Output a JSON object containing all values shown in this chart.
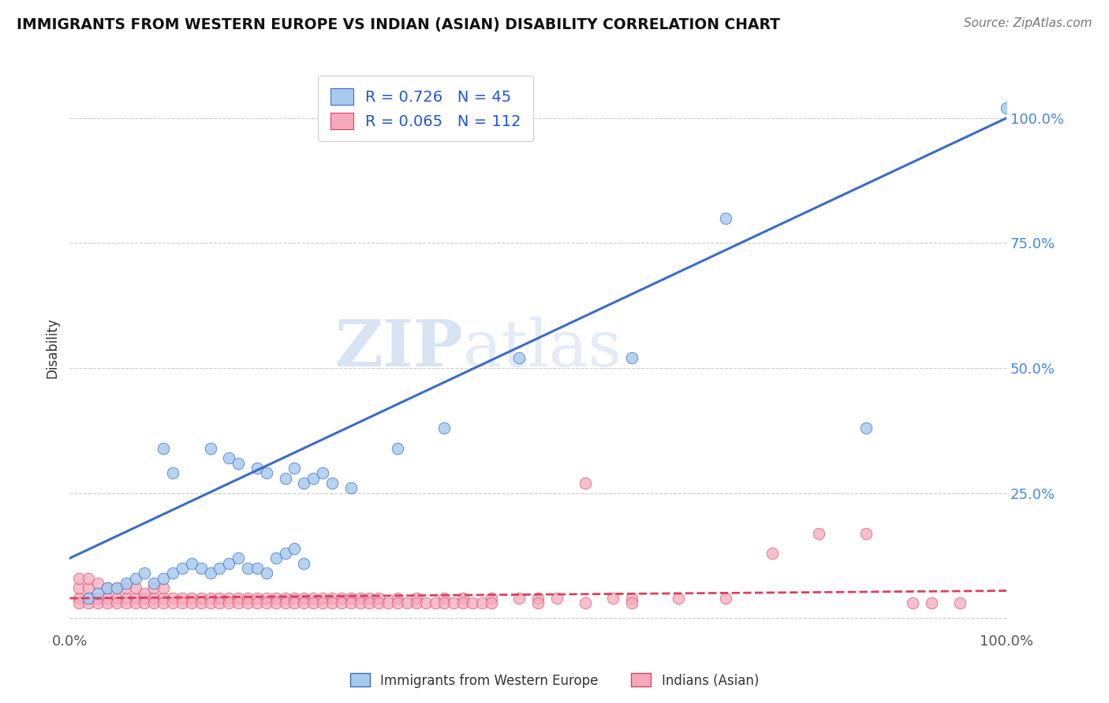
{
  "title": "IMMIGRANTS FROM WESTERN EUROPE VS INDIAN (ASIAN) DISABILITY CORRELATION CHART",
  "source": "Source: ZipAtlas.com",
  "ylabel": "Disability",
  "xlim": [
    0,
    1
  ],
  "ylim": [
    -0.02,
    1.1
  ],
  "yticks": [
    0,
    0.25,
    0.5,
    0.75,
    1.0
  ],
  "ytick_labels": [
    "",
    "25.0%",
    "50.0%",
    "75.0%",
    "100.0%"
  ],
  "xticks": [
    0,
    1
  ],
  "xtick_labels": [
    "0.0%",
    "100.0%"
  ],
  "blue_R": 0.726,
  "blue_N": 45,
  "pink_R": 0.065,
  "pink_N": 112,
  "blue_color": "#A8CAEE",
  "pink_color": "#F5AABB",
  "blue_line_color": "#3B6CC4",
  "pink_line_color": "#D94060",
  "legend_label_blue": "Immigrants from Western Europe",
  "legend_label_pink": "Indians (Asian)",
  "watermark": "ZIPatlas",
  "blue_regression": [
    0.0,
    0.12,
    1.0,
    1.0
  ],
  "pink_regression": [
    0.0,
    0.04,
    1.0,
    0.055
  ],
  "blue_scatter_x": [
    0.02,
    0.03,
    0.04,
    0.05,
    0.06,
    0.07,
    0.08,
    0.09,
    0.1,
    0.11,
    0.12,
    0.13,
    0.14,
    0.15,
    0.16,
    0.17,
    0.18,
    0.19,
    0.2,
    0.21,
    0.22,
    0.23,
    0.24,
    0.25,
    0.1,
    0.11,
    0.15,
    0.17,
    0.18,
    0.2,
    0.21,
    0.23,
    0.24,
    0.25,
    0.26,
    0.27,
    0.28,
    0.3,
    0.35,
    0.4,
    0.48,
    0.6,
    0.7,
    0.85,
    1.0
  ],
  "blue_scatter_y": [
    0.04,
    0.05,
    0.06,
    0.06,
    0.07,
    0.08,
    0.09,
    0.07,
    0.08,
    0.09,
    0.1,
    0.11,
    0.1,
    0.09,
    0.1,
    0.11,
    0.12,
    0.1,
    0.1,
    0.09,
    0.12,
    0.13,
    0.14,
    0.11,
    0.34,
    0.29,
    0.34,
    0.32,
    0.31,
    0.3,
    0.29,
    0.28,
    0.3,
    0.27,
    0.28,
    0.29,
    0.27,
    0.26,
    0.34,
    0.38,
    0.52,
    0.52,
    0.8,
    0.38,
    1.02
  ],
  "pink_scatter_x": [
    0.01,
    0.01,
    0.01,
    0.02,
    0.02,
    0.02,
    0.03,
    0.03,
    0.04,
    0.04,
    0.05,
    0.05,
    0.06,
    0.06,
    0.07,
    0.07,
    0.08,
    0.08,
    0.09,
    0.09,
    0.1,
    0.1,
    0.11,
    0.12,
    0.13,
    0.14,
    0.15,
    0.16,
    0.17,
    0.18,
    0.19,
    0.2,
    0.21,
    0.22,
    0.23,
    0.24,
    0.25,
    0.26,
    0.27,
    0.28,
    0.29,
    0.3,
    0.31,
    0.32,
    0.33,
    0.35,
    0.37,
    0.4,
    0.42,
    0.45,
    0.48,
    0.5,
    0.52,
    0.55,
    0.58,
    0.6,
    0.65,
    0.7,
    0.75,
    0.8,
    0.01,
    0.02,
    0.03,
    0.04,
    0.05,
    0.06,
    0.07,
    0.08,
    0.09,
    0.1,
    0.11,
    0.12,
    0.13,
    0.14,
    0.15,
    0.16,
    0.17,
    0.18,
    0.19,
    0.2,
    0.21,
    0.22,
    0.23,
    0.24,
    0.25,
    0.26,
    0.27,
    0.28,
    0.29,
    0.3,
    0.31,
    0.32,
    0.33,
    0.34,
    0.35,
    0.36,
    0.37,
    0.38,
    0.39,
    0.4,
    0.41,
    0.42,
    0.43,
    0.44,
    0.45,
    0.5,
    0.55,
    0.6,
    0.85,
    0.9,
    0.92,
    0.95
  ],
  "pink_scatter_y": [
    0.04,
    0.06,
    0.08,
    0.04,
    0.06,
    0.08,
    0.04,
    0.07,
    0.04,
    0.06,
    0.04,
    0.06,
    0.04,
    0.06,
    0.04,
    0.06,
    0.04,
    0.05,
    0.04,
    0.06,
    0.04,
    0.06,
    0.04,
    0.04,
    0.04,
    0.04,
    0.04,
    0.04,
    0.04,
    0.04,
    0.04,
    0.04,
    0.04,
    0.04,
    0.04,
    0.04,
    0.04,
    0.04,
    0.04,
    0.04,
    0.04,
    0.04,
    0.04,
    0.04,
    0.04,
    0.04,
    0.04,
    0.04,
    0.04,
    0.04,
    0.04,
    0.04,
    0.04,
    0.27,
    0.04,
    0.04,
    0.04,
    0.04,
    0.13,
    0.17,
    0.03,
    0.03,
    0.03,
    0.03,
    0.03,
    0.03,
    0.03,
    0.03,
    0.03,
    0.03,
    0.03,
    0.03,
    0.03,
    0.03,
    0.03,
    0.03,
    0.03,
    0.03,
    0.03,
    0.03,
    0.03,
    0.03,
    0.03,
    0.03,
    0.03,
    0.03,
    0.03,
    0.03,
    0.03,
    0.03,
    0.03,
    0.03,
    0.03,
    0.03,
    0.03,
    0.03,
    0.03,
    0.03,
    0.03,
    0.03,
    0.03,
    0.03,
    0.03,
    0.03,
    0.03,
    0.03,
    0.03,
    0.03,
    0.17,
    0.03,
    0.03,
    0.03
  ]
}
